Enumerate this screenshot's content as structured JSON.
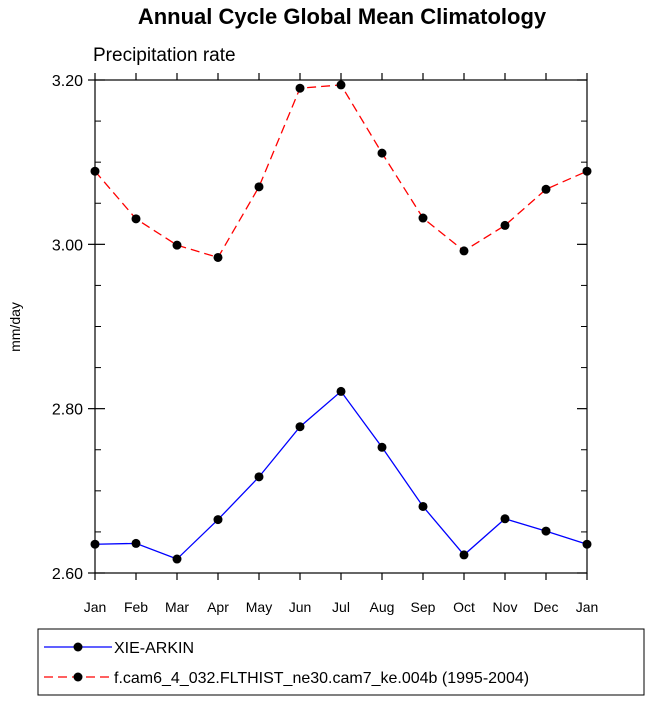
{
  "chart_data": {
    "type": "line",
    "title": "Annual Cycle Global Mean Climatology",
    "subtitle": "Precipitation rate",
    "xlabel": "",
    "ylabel": "mm/day",
    "categories": [
      "Jan",
      "Feb",
      "Mar",
      "Apr",
      "May",
      "Jun",
      "Jul",
      "Aug",
      "Sep",
      "Oct",
      "Nov",
      "Dec",
      "Jan"
    ],
    "ylim": [
      2.6,
      3.2
    ],
    "yticks": [
      2.6,
      2.8,
      3.0,
      3.2
    ],
    "ytick_labels": [
      "2.60",
      "2.80",
      "3.00",
      "3.20"
    ],
    "grid": false,
    "legend_position": "bottom",
    "series": [
      {
        "name": "XIE-ARKIN",
        "color": "#0000ff",
        "dash": "solid",
        "values": [
          2.635,
          2.636,
          2.617,
          2.665,
          2.717,
          2.778,
          2.821,
          2.753,
          2.681,
          2.622,
          2.666,
          2.651,
          2.635
        ]
      },
      {
        "name": "f.cam6_4_032.FLTHIST_ne30.cam7_ke.004b (1995-2004)",
        "color": "#ff0000",
        "dash": "dashed",
        "values": [
          3.089,
          3.031,
          2.999,
          2.984,
          3.07,
          3.19,
          3.194,
          3.111,
          3.032,
          2.992,
          3.023,
          3.067,
          3.089
        ]
      }
    ]
  }
}
